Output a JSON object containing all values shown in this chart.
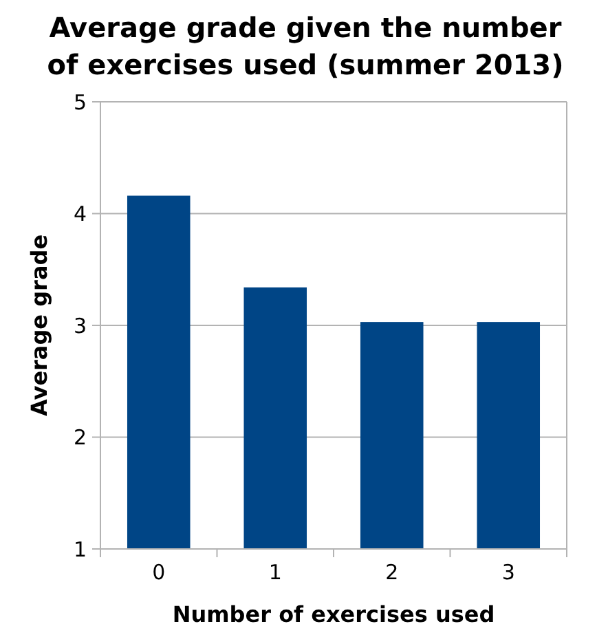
{
  "chart_data": {
    "type": "bar",
    "title": "Average grade given the number of exercises used (summer 2013)",
    "xlabel": "Number of exercises used",
    "ylabel": "Average grade",
    "categories": [
      "0",
      "1",
      "2",
      "3"
    ],
    "values": [
      4.16,
      3.34,
      3.03,
      3.03
    ],
    "color": "#004586",
    "ylim": [
      1,
      5
    ],
    "yticks": [
      1,
      2,
      3,
      4,
      5
    ],
    "grid": "y"
  }
}
